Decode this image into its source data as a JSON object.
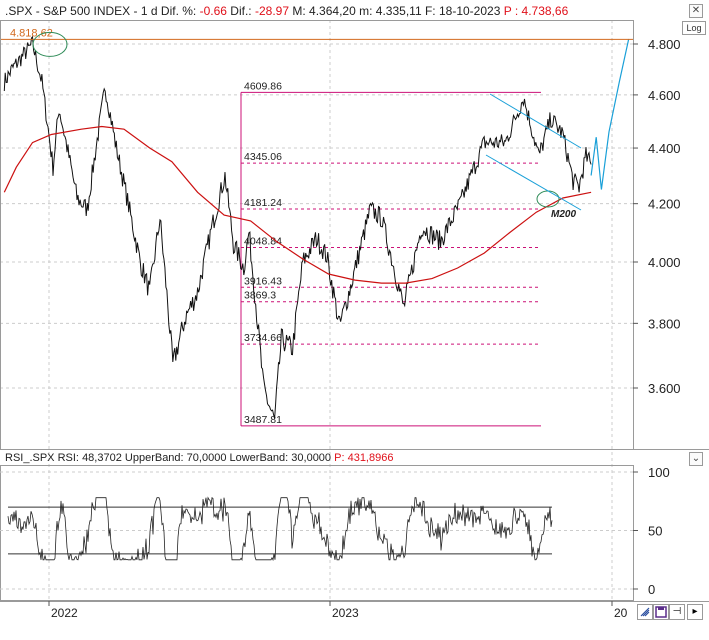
{
  "header": {
    "symbol": ".SPX",
    "name": "S&P 500 INDEX",
    "timeframe": "1 d",
    "dif_pct_label": "Dif. %:",
    "dif_pct": "-0.66",
    "dif_label": "Dif.:",
    "dif": "-28.97",
    "m1_label": "M:",
    "m1": "4.364,20",
    "m2_label": "m:",
    "m2": "4.335,11",
    "f_label": "F:",
    "f": "18-10-2023",
    "p_label": "P :",
    "p": "4.738,66"
  },
  "toolbar": {
    "log_label": "Log",
    "close": "✕"
  },
  "colors": {
    "price": "#111111",
    "ma200": "#cc1111",
    "fib": "#cc1177",
    "channel": "#1aa0d8",
    "ath_line": "#d2691e",
    "ellipse": "#2e8b57",
    "rsi": "#222222",
    "grid": "#cccccc"
  },
  "chart_data": [
    {
      "type": "line",
      "title": ".SPX - S&P 500 INDEX",
      "y_ticks": [
        "4.800",
        "4.600",
        "4.400",
        "4.200",
        "4.000",
        "3.800",
        "3.600"
      ],
      "ylim": [
        3480,
        4830
      ],
      "x_ticks": [
        "2022",
        "2023",
        "20"
      ],
      "ath_label": "4.818,62",
      "ath_value": 4818.62,
      "ma_label": "M200",
      "fib_levels": [
        {
          "label": "4609.86",
          "value": 4609.86
        },
        {
          "label": "4345.06",
          "value": 4345.06
        },
        {
          "label": "4181.24",
          "value": 4181.24
        },
        {
          "label": "4048.84",
          "value": 4048.84
        },
        {
          "label": "3916.43",
          "value": 3916.43
        },
        {
          "label": "3869.3",
          "value": 3869.3
        },
        {
          "label": "3734.66",
          "value": 3734.66
        },
        {
          "label": "3487.81",
          "value": 3487.81
        }
      ],
      "price_keypoints": [
        [
          "2021-12-01",
          4650
        ],
        [
          "2021-12-10",
          4700
        ],
        [
          "2022-01-03",
          4800
        ],
        [
          "2022-01-14",
          4650
        ],
        [
          "2022-01-27",
          4330
        ],
        [
          "2022-02-03",
          4550
        ],
        [
          "2022-02-24",
          4220
        ],
        [
          "2022-03-08",
          4180
        ],
        [
          "2022-03-29",
          4630
        ],
        [
          "2022-04-11",
          4400
        ],
        [
          "2022-04-29",
          4140
        ],
        [
          "2022-05-09",
          4000
        ],
        [
          "2022-05-20",
          3900
        ],
        [
          "2022-06-01",
          4150
        ],
        [
          "2022-06-16",
          3670
        ],
        [
          "2022-07-01",
          3820
        ],
        [
          "2022-07-15",
          3900
        ],
        [
          "2022-08-01",
          4120
        ],
        [
          "2022-08-16",
          4300
        ],
        [
          "2022-08-26",
          4060
        ],
        [
          "2022-09-07",
          3980
        ],
        [
          "2022-09-13",
          4100
        ],
        [
          "2022-09-30",
          3600
        ],
        [
          "2022-10-13",
          3500
        ],
        [
          "2022-10-21",
          3750
        ],
        [
          "2022-11-03",
          3720
        ],
        [
          "2022-11-15",
          4000
        ],
        [
          "2022-12-01",
          4080
        ],
        [
          "2022-12-13",
          4020
        ],
        [
          "2022-12-28",
          3790
        ],
        [
          "2023-01-10",
          3920
        ],
        [
          "2023-02-02",
          4180
        ],
        [
          "2023-02-15",
          4150
        ],
        [
          "2023-03-13",
          3850
        ],
        [
          "2023-04-03",
          4120
        ],
        [
          "2023-04-25",
          4070
        ],
        [
          "2023-05-18",
          4200
        ],
        [
          "2023-06-15",
          4420
        ],
        [
          "2023-07-10",
          4420
        ],
        [
          "2023-07-31",
          4590
        ],
        [
          "2023-08-18",
          4370
        ],
        [
          "2023-09-01",
          4510
        ],
        [
          "2023-09-15",
          4450
        ],
        [
          "2023-09-27",
          4280
        ],
        [
          "2023-10-04",
          4260
        ],
        [
          "2023-10-12",
          4370
        ],
        [
          "2023-10-18",
          4340
        ]
      ],
      "ma200_keypoints": [
        [
          "2021-12-01",
          4240
        ],
        [
          "2021-12-15",
          4330
        ],
        [
          "2022-01-03",
          4420
        ],
        [
          "2022-01-25",
          4450
        ],
        [
          "2022-03-01",
          4470
        ],
        [
          "2022-03-25",
          4480
        ],
        [
          "2022-04-20",
          4470
        ],
        [
          "2022-05-20",
          4400
        ],
        [
          "2022-06-15",
          4350
        ],
        [
          "2022-07-15",
          4240
        ],
        [
          "2022-08-15",
          4160
        ],
        [
          "2022-09-15",
          4140
        ],
        [
          "2022-10-15",
          4070
        ],
        [
          "2022-11-15",
          4010
        ],
        [
          "2022-12-15",
          3960
        ],
        [
          "2023-01-15",
          3940
        ],
        [
          "2023-02-15",
          3930
        ],
        [
          "2023-03-15",
          3930
        ],
        [
          "2023-04-15",
          3945
        ],
        [
          "2023-05-15",
          3980
        ],
        [
          "2023-06-15",
          4030
        ],
        [
          "2023-07-15",
          4100
        ],
        [
          "2023-08-15",
          4170
        ],
        [
          "2023-09-15",
          4220
        ],
        [
          "2023-10-18",
          4240
        ]
      ],
      "projection": [
        [
          "2023-10-18",
          4300
        ],
        [
          "2023-10-24",
          4440
        ],
        [
          "2023-10-30",
          4250
        ],
        [
          "2023-11-08",
          4460
        ],
        [
          "2023-11-20",
          4650
        ],
        [
          "2023-12-01",
          4820
        ]
      ]
    },
    {
      "type": "line",
      "title": "RSI_.SPX",
      "y_ticks": [
        "100",
        "50",
        "0"
      ],
      "ylim": [
        0,
        100
      ],
      "upper_band": 70,
      "lower_band": 30
    }
  ],
  "rsi_header": {
    "label": "RSI_.SPX",
    "rsi_label": "RSI:",
    "rsi": "48,3702",
    "upper_label": "UpperBand:",
    "upper": "70,0000",
    "lower_label": "LowerBand:",
    "lower": "30,0000",
    "p_label": "P:",
    "p": "431,8966"
  }
}
